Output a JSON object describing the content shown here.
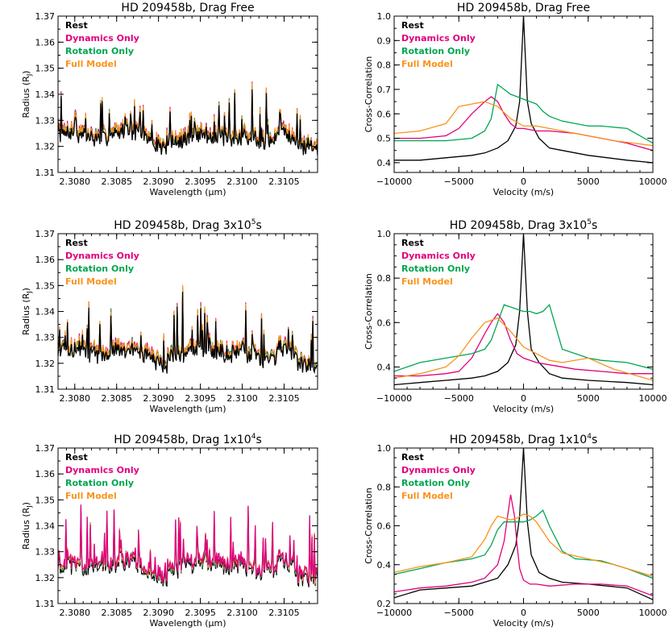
{
  "colors": {
    "rest": "#000000",
    "dynamics": "#e0007a",
    "rotation": "#00a651",
    "full": "#f7941d"
  },
  "legend": [
    {
      "key": "rest",
      "label": "Rest"
    },
    {
      "key": "dynamics",
      "label": "Dynamics Only"
    },
    {
      "key": "rotation",
      "label": "Rotation Only"
    },
    {
      "key": "full",
      "label": "Full Model"
    }
  ],
  "chart_data": [
    {
      "id": "spec-dragfree",
      "type": "line",
      "title": "HD 209458b, Drag Free",
      "title_sup": "",
      "xlabel": "Wavelength (μm)",
      "ylabel": "Radius (R",
      "xlim": [
        2.3078,
        2.3109
      ],
      "ylim": [
        1.31,
        1.37
      ],
      "xticks": [
        2.308,
        2.3085,
        2.309,
        2.3095,
        2.31,
        2.3105
      ],
      "xticklabels": [
        "2.3080",
        "2.3085",
        "2.3090",
        "2.3095",
        "2.3100",
        "2.3105"
      ],
      "yticks": [
        1.31,
        1.32,
        1.33,
        1.34,
        1.35,
        1.36,
        1.37
      ],
      "yticklabels": [
        "1.31",
        "1.32",
        "1.33",
        "1.34",
        "1.35",
        "1.36",
        "1.37"
      ],
      "series_kind": "spectrum",
      "envelope": "free",
      "dominant": "black",
      "note": "Dense high-resolution transmission spectra; all four models closely overlap around 1.32–1.33."
    },
    {
      "id": "ccf-dragfree",
      "type": "line",
      "title": "HD 209458b, Drag Free",
      "title_sup": "",
      "xlabel": "Velocity (m/s)",
      "ylabel": "Cross-Correlation",
      "xlim": [
        -10000,
        10000
      ],
      "ylim": [
        0.36,
        1.0
      ],
      "xticks": [
        -10000,
        -5000,
        0,
        5000,
        10000
      ],
      "xticklabels": [
        "−10000",
        "−5000",
        "0",
        "5000",
        "10000"
      ],
      "yticks": [
        0.4,
        0.5,
        0.6,
        0.7,
        0.8,
        0.9,
        1.0
      ],
      "yticklabels": [
        "0.4",
        "0.5",
        "0.6",
        "0.7",
        "0.8",
        "0.9",
        "1.0"
      ],
      "series": [
        {
          "key": "rest",
          "x": [
            -10000,
            -8000,
            -6000,
            -4000,
            -3000,
            -2000,
            -1200,
            -600,
            -300,
            0,
            300,
            600,
            1200,
            2000,
            3000,
            5000,
            8000,
            10000
          ],
          "y": [
            0.41,
            0.41,
            0.42,
            0.43,
            0.44,
            0.46,
            0.49,
            0.55,
            0.65,
            1.0,
            0.65,
            0.56,
            0.5,
            0.46,
            0.45,
            0.43,
            0.41,
            0.4
          ]
        },
        {
          "key": "dynamics",
          "x": [
            -10000,
            -8000,
            -6000,
            -5000,
            -4000,
            -3000,
            -2500,
            -2000,
            -1500,
            -1000,
            -500,
            0,
            1000,
            2000,
            4000,
            6000,
            8000,
            10000
          ],
          "y": [
            0.5,
            0.5,
            0.51,
            0.54,
            0.6,
            0.65,
            0.67,
            0.65,
            0.6,
            0.56,
            0.54,
            0.54,
            0.53,
            0.53,
            0.52,
            0.5,
            0.48,
            0.45
          ]
        },
        {
          "key": "rotation",
          "x": [
            -10000,
            -8000,
            -6000,
            -4000,
            -3000,
            -2500,
            -2000,
            -1500,
            -1000,
            -500,
            0,
            500,
            1000,
            1500,
            2000,
            3000,
            5000,
            6000,
            8000,
            10000
          ],
          "y": [
            0.49,
            0.49,
            0.49,
            0.5,
            0.53,
            0.58,
            0.72,
            0.7,
            0.68,
            0.67,
            0.66,
            0.65,
            0.64,
            0.61,
            0.59,
            0.57,
            0.55,
            0.55,
            0.54,
            0.48
          ]
        },
        {
          "key": "full",
          "x": [
            -10000,
            -8000,
            -6000,
            -5000,
            -4000,
            -3000,
            -2000,
            -1000,
            0,
            1000,
            2000,
            3000,
            5000,
            7000,
            10000
          ],
          "y": [
            0.52,
            0.53,
            0.56,
            0.63,
            0.64,
            0.65,
            0.63,
            0.58,
            0.55,
            0.55,
            0.54,
            0.53,
            0.51,
            0.49,
            0.47
          ]
        }
      ]
    },
    {
      "id": "spec-drag3e5",
      "type": "line",
      "title": "HD 209458b, Drag 3x10",
      "title_sup": "5",
      "title_suffix": "s",
      "xlabel": "Wavelength (μm)",
      "ylabel": "Radius (R",
      "xlim": [
        2.3078,
        2.3109
      ],
      "ylim": [
        1.31,
        1.37
      ],
      "xticks": [
        2.308,
        2.3085,
        2.309,
        2.3095,
        2.31,
        2.3105
      ],
      "xticklabels": [
        "2.3080",
        "2.3085",
        "2.3090",
        "2.3095",
        "2.3100",
        "2.3105"
      ],
      "yticks": [
        1.31,
        1.32,
        1.33,
        1.34,
        1.35,
        1.36,
        1.37
      ],
      "yticklabels": [
        "1.31",
        "1.32",
        "1.33",
        "1.34",
        "1.35",
        "1.36",
        "1.37"
      ],
      "series_kind": "spectrum",
      "envelope": "mid",
      "dominant": "black",
      "note": "Spectral lines stronger, peaks up to ~1.355."
    },
    {
      "id": "ccf-drag3e5",
      "type": "line",
      "title": "HD 209458b, Drag 3x10",
      "title_sup": "5",
      "title_suffix": "s",
      "xlabel": "Velocity (m/s)",
      "ylabel": "Cross-Correlation",
      "xlim": [
        -10000,
        10000
      ],
      "ylim": [
        0.3,
        1.0
      ],
      "xticks": [
        -10000,
        -5000,
        0,
        5000,
        10000
      ],
      "xticklabels": [
        "−10000",
        "−5000",
        "0",
        "5000",
        "10000"
      ],
      "yticks": [
        0.4,
        0.6,
        0.8,
        1.0
      ],
      "yticklabels": [
        "0.4",
        "0.6",
        "0.8",
        "1.0"
      ],
      "series": [
        {
          "key": "rest",
          "x": [
            -10000,
            -8000,
            -6000,
            -4000,
            -3000,
            -2000,
            -1200,
            -600,
            -300,
            0,
            300,
            600,
            1200,
            2000,
            3000,
            5000,
            8000,
            10000
          ],
          "y": [
            0.32,
            0.33,
            0.34,
            0.35,
            0.36,
            0.38,
            0.42,
            0.5,
            0.65,
            1.0,
            0.65,
            0.48,
            0.42,
            0.37,
            0.35,
            0.34,
            0.33,
            0.32
          ]
        },
        {
          "key": "dynamics",
          "x": [
            -10000,
            -8000,
            -6000,
            -5000,
            -4000,
            -3000,
            -2500,
            -2000,
            -1500,
            -1000,
            -500,
            0,
            1000,
            2000,
            4000,
            6000,
            8000,
            10000
          ],
          "y": [
            0.36,
            0.36,
            0.37,
            0.38,
            0.44,
            0.55,
            0.6,
            0.64,
            0.6,
            0.52,
            0.46,
            0.44,
            0.42,
            0.41,
            0.39,
            0.38,
            0.37,
            0.37
          ]
        },
        {
          "key": "rotation",
          "x": [
            -10000,
            -8000,
            -6000,
            -4000,
            -3000,
            -2500,
            -2000,
            -1500,
            -1000,
            -500,
            0,
            500,
            1000,
            1500,
            2000,
            3000,
            5000,
            6000,
            8000,
            10000
          ],
          "y": [
            0.38,
            0.42,
            0.44,
            0.46,
            0.48,
            0.52,
            0.6,
            0.68,
            0.67,
            0.66,
            0.65,
            0.65,
            0.64,
            0.65,
            0.68,
            0.48,
            0.44,
            0.43,
            0.42,
            0.39
          ]
        },
        {
          "key": "full",
          "x": [
            -10000,
            -8000,
            -6000,
            -5000,
            -4000,
            -3000,
            -2000,
            -1000,
            0,
            1000,
            2000,
            3000,
            5000,
            7000,
            10000
          ],
          "y": [
            0.35,
            0.37,
            0.4,
            0.45,
            0.53,
            0.6,
            0.62,
            0.56,
            0.49,
            0.46,
            0.43,
            0.42,
            0.44,
            0.39,
            0.34
          ]
        }
      ]
    },
    {
      "id": "spec-drag1e4",
      "type": "line",
      "title": "HD 209458b, Drag 1x10",
      "title_sup": "4",
      "title_suffix": "s",
      "xlabel": "Wavelength (μm)",
      "ylabel": "Radius (R",
      "xlim": [
        2.3078,
        2.3109
      ],
      "ylim": [
        1.31,
        1.37
      ],
      "xticks": [
        2.308,
        2.3085,
        2.309,
        2.3095,
        2.31,
        2.3105
      ],
      "xticklabels": [
        "2.3080",
        "2.3085",
        "2.3090",
        "2.3095",
        "2.3100",
        "2.3105"
      ],
      "yticks": [
        1.31,
        1.32,
        1.33,
        1.34,
        1.35,
        1.36,
        1.37
      ],
      "yticklabels": [
        "1.31",
        "1.32",
        "1.33",
        "1.34",
        "1.35",
        "1.36",
        "1.37"
      ],
      "series_kind": "spectrum",
      "envelope": "strong",
      "dominant": "dynamics",
      "note": "Strong lines; Dynamics Only (magenta) dominates the visible trace."
    },
    {
      "id": "ccf-drag1e4",
      "type": "line",
      "title": "HD 209458b, Drag 1x10",
      "title_sup": "4",
      "title_suffix": "s",
      "xlabel": "Velocity (m/s)",
      "ylabel": "Cross-Correlation",
      "xlim": [
        -10000,
        10000
      ],
      "ylim": [
        0.2,
        1.0
      ],
      "xticks": [
        -10000,
        -5000,
        0,
        5000,
        10000
      ],
      "xticklabels": [
        "−10000",
        "−5000",
        "0",
        "5000",
        "10000"
      ],
      "yticks": [
        0.2,
        0.4,
        0.6,
        0.8,
        1.0
      ],
      "yticklabels": [
        "0.2",
        "0.4",
        "0.6",
        "0.8",
        "1.0"
      ],
      "series": [
        {
          "key": "rest",
          "x": [
            -10000,
            -8000,
            -6000,
            -4000,
            -3000,
            -2000,
            -1200,
            -600,
            -300,
            0,
            300,
            600,
            1200,
            2000,
            3000,
            5000,
            8000,
            10000
          ],
          "y": [
            0.23,
            0.27,
            0.28,
            0.29,
            0.31,
            0.33,
            0.4,
            0.5,
            0.65,
            1.0,
            0.62,
            0.45,
            0.36,
            0.33,
            0.31,
            0.3,
            0.28,
            0.22
          ]
        },
        {
          "key": "dynamics",
          "x": [
            -10000,
            -8000,
            -6000,
            -4000,
            -3000,
            -2000,
            -1500,
            -1000,
            -700,
            -500,
            -300,
            0,
            500,
            1000,
            2000,
            4000,
            6000,
            8000,
            10000
          ],
          "y": [
            0.26,
            0.28,
            0.29,
            0.31,
            0.33,
            0.4,
            0.52,
            0.76,
            0.65,
            0.5,
            0.38,
            0.32,
            0.3,
            0.3,
            0.29,
            0.3,
            0.3,
            0.29,
            0.24
          ]
        },
        {
          "key": "rotation",
          "x": [
            -10000,
            -8000,
            -6000,
            -4000,
            -3000,
            -2500,
            -2000,
            -1500,
            -1000,
            -500,
            0,
            500,
            1000,
            1500,
            2000,
            3000,
            4000,
            6000,
            8000,
            10000
          ],
          "y": [
            0.35,
            0.38,
            0.41,
            0.43,
            0.45,
            0.5,
            0.58,
            0.62,
            0.62,
            0.62,
            0.62,
            0.63,
            0.65,
            0.68,
            0.6,
            0.47,
            0.43,
            0.42,
            0.38,
            0.33
          ]
        },
        {
          "key": "full",
          "x": [
            -10000,
            -8000,
            -6000,
            -4000,
            -3000,
            -2500,
            -2000,
            -1500,
            -1000,
            -500,
            0,
            500,
            1000,
            1500,
            2000,
            3000,
            5000,
            7000,
            10000
          ],
          "y": [
            0.36,
            0.39,
            0.41,
            0.44,
            0.53,
            0.6,
            0.65,
            0.64,
            0.63,
            0.64,
            0.66,
            0.65,
            0.62,
            0.57,
            0.52,
            0.46,
            0.43,
            0.4,
            0.34
          ]
        }
      ]
    }
  ]
}
